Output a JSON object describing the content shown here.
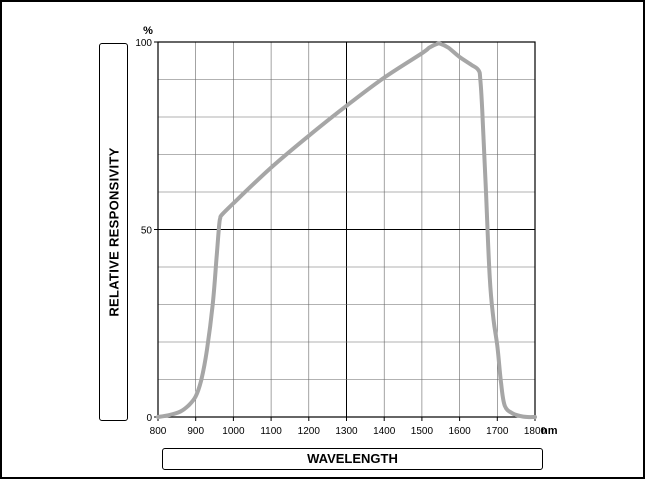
{
  "chart_data": {
    "type": "line",
    "title": "",
    "xlabel": "WAVELENGTH",
    "ylabel": "RELATIVE RESPONSIVITY",
    "x_unit": "nm",
    "y_unit": "%",
    "xlim": [
      800,
      1800
    ],
    "ylim": [
      0,
      100
    ],
    "x_ticks": [
      800,
      900,
      1000,
      1100,
      1200,
      1300,
      1400,
      1500,
      1600,
      1700,
      1800
    ],
    "x_tick_labels": [
      "800",
      "900",
      "1000",
      "1100",
      "1200",
      "1300",
      "1400",
      "1500",
      "1600",
      "1700",
      "1800"
    ],
    "y_ticks": [
      0,
      50,
      100
    ],
    "y_tick_labels": [
      "0",
      "50",
      "100"
    ],
    "grid": true,
    "series": [
      {
        "color": "#a6a6a6",
        "x": [
          800,
          830,
          860,
          880,
          900,
          915,
          930,
          945,
          955,
          962,
          965,
          970,
          1000,
          1100,
          1200,
          1300,
          1400,
          1500,
          1520,
          1540,
          1550,
          1570,
          1600,
          1630,
          1650,
          1655,
          1660,
          1670,
          1680,
          1690,
          1700,
          1710,
          1720,
          1740,
          1760,
          1780,
          1800
        ],
        "y": [
          0,
          0.5,
          1.5,
          3,
          5.5,
          10,
          18,
          30,
          42,
          51,
          53,
          54,
          57,
          66.5,
          75,
          83,
          90.5,
          97,
          98.5,
          99.5,
          99.5,
          98.5,
          96,
          94,
          92.5,
          90,
          82,
          60,
          37,
          26,
          19,
          9,
          3,
          1,
          0.3,
          0,
          0
        ]
      }
    ]
  }
}
